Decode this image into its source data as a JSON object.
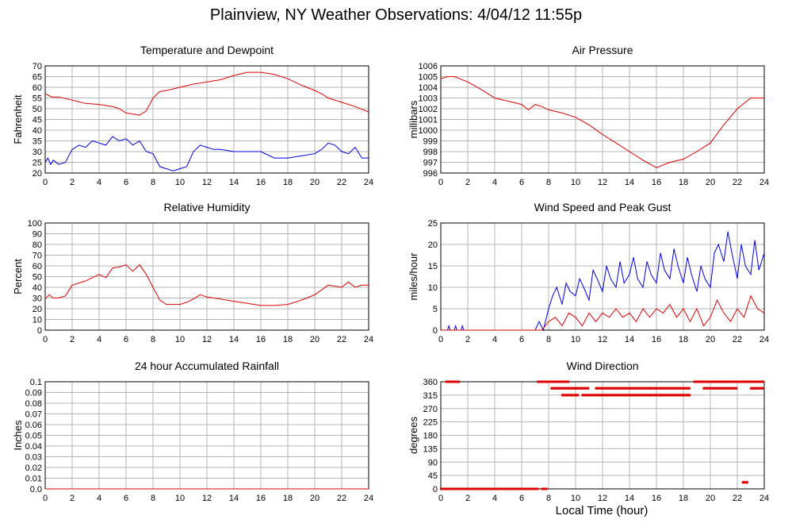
{
  "header": {
    "title": "Plainview, NY Weather Observations: 4/04/12 11:55p"
  },
  "x_axis_label": "Local Time (hour)",
  "chart_data": [
    {
      "id": "temp",
      "type": "line",
      "title": "Temperature and Dewpoint",
      "ylabel": "Fahrenheit",
      "xlim": [
        0,
        24
      ],
      "ylim": [
        20,
        70
      ],
      "ytick_step": 5,
      "ytick_decimals": 0,
      "grid": true,
      "series": [
        {
          "color": "#e00000",
          "x": [
            0,
            0.5,
            1,
            2,
            3,
            4,
            5,
            5.5,
            6,
            7,
            7.5,
            8,
            8.5,
            9,
            10,
            11,
            12,
            13,
            14,
            15,
            16,
            17,
            18,
            19,
            20,
            20.5,
            21,
            22,
            23,
            24
          ],
          "y": [
            57,
            55.5,
            55.5,
            54,
            52.5,
            52,
            51,
            50,
            48,
            47,
            49,
            55,
            58,
            58.5,
            60,
            61.5,
            62.5,
            63.5,
            65.5,
            67,
            67,
            66,
            64,
            61,
            58.5,
            57,
            55,
            53,
            51,
            48.5
          ]
        },
        {
          "color": "#0000e0",
          "x": [
            0,
            0.2,
            0.4,
            0.6,
            1,
            1.5,
            2,
            2.5,
            3,
            3.5,
            4,
            4.5,
            5,
            5.5,
            6,
            6.5,
            7,
            7.5,
            8,
            8.5,
            9,
            9.5,
            10,
            10.5,
            11,
            11.5,
            12,
            12.5,
            13,
            14,
            15,
            16,
            17,
            18,
            19,
            20,
            20.5,
            21,
            21.5,
            22,
            22.5,
            23,
            23.5,
            24
          ],
          "y": [
            25,
            27,
            24,
            26,
            24,
            25,
            31,
            33,
            32,
            35,
            34,
            33,
            37,
            35,
            36,
            33,
            35,
            30,
            29,
            23,
            22,
            21,
            22,
            23,
            30,
            33,
            32,
            31,
            31,
            30,
            30,
            30,
            27,
            27,
            28,
            29,
            31,
            34,
            33,
            30,
            29,
            32,
            27,
            27
          ]
        }
      ]
    },
    {
      "id": "pressure",
      "type": "line",
      "title": "Air Pressure",
      "ylabel": "millibars",
      "xlim": [
        0,
        24
      ],
      "ylim": [
        996,
        1006
      ],
      "ytick_step": 1,
      "ytick_decimals": 0,
      "grid": true,
      "series": [
        {
          "color": "#e00000",
          "x": [
            0,
            0.5,
            1,
            2,
            3,
            4,
            5,
            6,
            6.5,
            7,
            7.5,
            8,
            9,
            10,
            11,
            12,
            13,
            14,
            15,
            16,
            17,
            18,
            19,
            20,
            21,
            22,
            23,
            24
          ],
          "y": [
            1004.8,
            1005,
            1005,
            1004.5,
            1003.8,
            1003,
            1002.7,
            1002.4,
            1001.9,
            1002.4,
            1002.2,
            1001.9,
            1001.6,
            1001.2,
            1000.5,
            999.6,
            998.8,
            998,
            997.2,
            996.5,
            997,
            997.3,
            998,
            998.8,
            1000.5,
            1002,
            1003,
            1003
          ]
        }
      ]
    },
    {
      "id": "rh",
      "type": "line",
      "title": "Relative Humidity",
      "ylabel": "Percent",
      "xlim": [
        0,
        24
      ],
      "ylim": [
        0,
        100
      ],
      "ytick_step": 10,
      "ytick_decimals": 0,
      "grid": true,
      "series": [
        {
          "color": "#e00000",
          "x": [
            0,
            0.3,
            0.6,
            1,
            1.5,
            2,
            3,
            4,
            4.5,
            5,
            5.5,
            6,
            6.5,
            7,
            7.5,
            8,
            8.5,
            9,
            10,
            10.5,
            11,
            11.5,
            12,
            13,
            14,
            15,
            16,
            17,
            18,
            19,
            20,
            21,
            22,
            22.5,
            23,
            23.5,
            24
          ],
          "y": [
            29,
            33,
            30,
            30,
            32,
            42,
            46,
            52,
            49,
            58,
            59,
            61,
            55,
            61,
            52,
            40,
            28,
            24,
            24,
            26,
            29,
            33,
            31,
            29,
            27,
            25,
            23,
            23,
            24,
            28,
            33,
            42,
            40,
            45,
            40,
            42,
            42
          ]
        }
      ]
    },
    {
      "id": "wind",
      "type": "line",
      "title": "Wind Speed and Peak Gust",
      "ylabel": "miles/hour",
      "xlim": [
        0,
        24
      ],
      "ylim": [
        0,
        25
      ],
      "ytick_step": 5,
      "ytick_decimals": 0,
      "grid": true,
      "series": [
        {
          "color": "#0000e0",
          "x": [
            0,
            0.5,
            0.6,
            0.7,
            1,
            1.1,
            1.2,
            1.5,
            1.6,
            1.7,
            2,
            7,
            7.3,
            7.6,
            8,
            8.3,
            8.6,
            9,
            9.3,
            9.6,
            10,
            10.3,
            10.6,
            11,
            11.3,
            11.6,
            12,
            12.3,
            12.6,
            13,
            13.3,
            13.6,
            14,
            14.3,
            14.6,
            15,
            15.3,
            15.6,
            16,
            16.3,
            16.6,
            17,
            17.3,
            17.6,
            18,
            18.3,
            18.6,
            19,
            19.3,
            19.6,
            20,
            20.3,
            20.6,
            21,
            21.3,
            21.6,
            22,
            22.3,
            22.6,
            23,
            23.3,
            23.6,
            24
          ],
          "y": [
            0,
            0,
            1,
            0,
            0,
            1,
            0,
            0,
            1,
            0,
            0,
            0,
            2,
            0,
            5,
            8,
            10,
            6,
            11,
            9,
            8,
            12,
            10,
            7,
            14,
            12,
            9,
            15,
            12,
            10,
            16,
            11,
            13,
            17,
            12,
            10,
            16,
            13,
            11,
            18,
            14,
            12,
            19,
            15,
            11,
            17,
            13,
            9,
            15,
            12,
            10,
            18,
            20,
            16,
            23,
            18,
            12,
            20,
            15,
            13,
            21,
            14,
            18
          ]
        },
        {
          "color": "#e00000",
          "x": [
            0,
            7.5,
            8,
            8.5,
            9,
            9.5,
            10,
            10.5,
            11,
            11.5,
            12,
            12.5,
            13,
            13.5,
            14,
            14.5,
            15,
            15.5,
            16,
            16.5,
            17,
            17.5,
            18,
            18.5,
            19,
            19.5,
            20,
            20.5,
            21,
            21.5,
            22,
            22.5,
            23,
            23.5,
            24
          ],
          "y": [
            0,
            0,
            2,
            3,
            1,
            4,
            3,
            1,
            4,
            2,
            4,
            3,
            5,
            3,
            4,
            2,
            5,
            3,
            5,
            4,
            6,
            3,
            5,
            2,
            5,
            1,
            3,
            7,
            4,
            2,
            5,
            3,
            8,
            5,
            4
          ]
        }
      ]
    },
    {
      "id": "rain",
      "type": "line",
      "title": "24 hour Accumulated Rainfall",
      "ylabel": "Inches",
      "xlim": [
        0,
        24
      ],
      "ylim": [
        0,
        0.1
      ],
      "ytick_step": 0.01,
      "ytick_decimals": 2,
      "ytick_labels": [
        "0.0",
        "0.01",
        "0.02",
        "0.03",
        "0.04",
        "0.05",
        "0.06",
        "0.07",
        "0.08",
        "0.09",
        "0.1"
      ],
      "grid": true,
      "series": [
        {
          "color": "#e00000",
          "x": [
            0,
            24
          ],
          "y": [
            0,
            0
          ]
        }
      ]
    },
    {
      "id": "dir",
      "type": "scatter",
      "title": "Wind Direction",
      "ylabel": "degrees",
      "xlim": [
        0,
        24
      ],
      "ylim": [
        0,
        360
      ],
      "ytick_step": 45,
      "ytick_decimals": 0,
      "grid": true,
      "series": [
        {
          "color": "#e00000",
          "segments": [
            {
              "x0": 0.0,
              "x1": 7.2,
              "y": 0
            },
            {
              "x0": 7.5,
              "x1": 7.9,
              "y": 0
            },
            {
              "x0": 0.4,
              "x1": 1.4,
              "y": 360
            },
            {
              "x0": 7.2,
              "x1": 9.5,
              "y": 360
            },
            {
              "x0": 8.2,
              "x1": 11.0,
              "y": 338
            },
            {
              "x0": 9.0,
              "x1": 10.2,
              "y": 315
            },
            {
              "x0": 10.5,
              "x1": 18.5,
              "y": 315
            },
            {
              "x0": 11.5,
              "x1": 18.5,
              "y": 338
            },
            {
              "x0": 18.8,
              "x1": 24.0,
              "y": 360
            },
            {
              "x0": 19.5,
              "x1": 22.0,
              "y": 338
            },
            {
              "x0": 23.0,
              "x1": 24.0,
              "y": 338
            },
            {
              "x0": 22.4,
              "x1": 22.8,
              "y": 22
            }
          ]
        }
      ]
    }
  ]
}
